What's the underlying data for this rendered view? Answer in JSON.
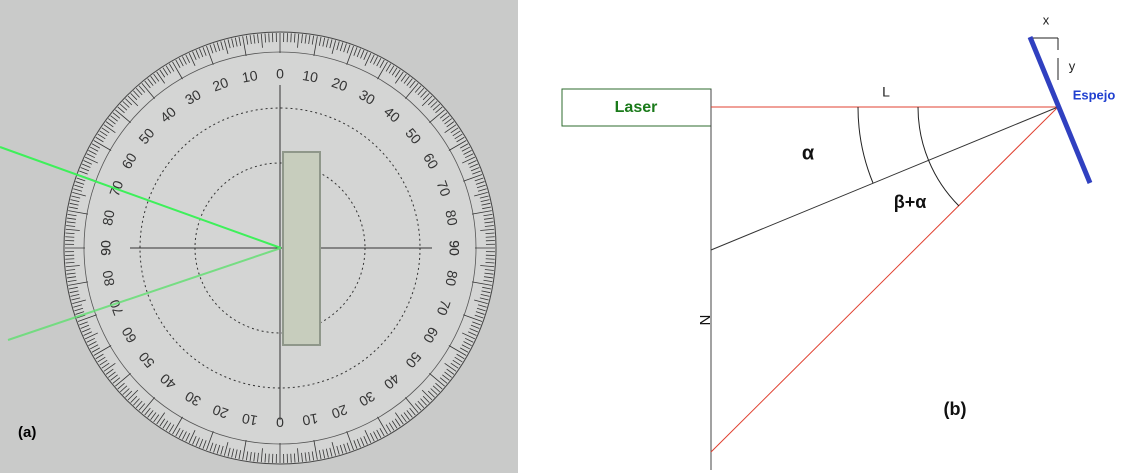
{
  "panel_a": {
    "label": "(a)",
    "scale_labels": [
      "0",
      "10",
      "20",
      "30",
      "40",
      "50",
      "60",
      "70",
      "80",
      "90"
    ]
  },
  "panel_b": {
    "label": "(b)",
    "laser": "Laser",
    "length": "L",
    "x": "x",
    "y": "y",
    "mirror": "Espejo",
    "alpha": "α",
    "beta_alpha": "β+α",
    "distance": "N"
  }
}
